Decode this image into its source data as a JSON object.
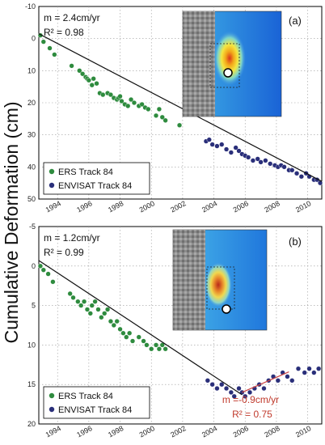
{
  "figure": {
    "ylabel": "Cumulative Deformation (cm)"
  },
  "colors": {
    "ers": "#2e8b3e",
    "envisat": "#2a2f7a",
    "fit": "#111111",
    "fit_envisat_b": "#cc4444",
    "annotation_red": "#c0392b"
  },
  "chart_data": [
    {
      "type": "scatter",
      "panel": "(a)",
      "x_ticks": [
        "1994",
        "1996",
        "1998",
        "2000",
        "2002",
        "2004",
        "2006",
        "2008",
        "2010"
      ],
      "xlim": [
        1992.8,
        2010.9
      ],
      "ylim": [
        -10,
        50
      ],
      "y_ticks": [
        "-10",
        "0",
        "10",
        "20",
        "30",
        "40",
        "50"
      ],
      "grid": true,
      "fit_text": "m =  2.4cm/yr",
      "r2_text": "R² = 0.98",
      "fit_line": {
        "x": [
          1992.8,
          2010.9
        ],
        "y": [
          -1.5,
          44.5
        ]
      },
      "legend": {
        "placement": "bottom-left",
        "entries": [
          "ERS Track 84",
          "ENVISAT Track 84"
        ]
      },
      "series": [
        {
          "name": "ERS Track 84",
          "color_key": "ers",
          "x": [
            1992.9,
            1993.1,
            1993.5,
            1993.8,
            1994.9,
            1995.4,
            1995.6,
            1995.8,
            1995.9,
            1996.0,
            1996.2,
            1996.3,
            1996.5,
            1996.7,
            1996.9,
            1997.2,
            1997.4,
            1997.6,
            1997.8,
            1997.9,
            1998.0,
            1998.1,
            1998.3,
            1998.5,
            1998.7,
            1998.9,
            1999.2,
            1999.4,
            1999.6,
            1999.8,
            2000.3,
            2000.5,
            2000.7,
            2000.9,
            2001.8
          ],
          "y": [
            -1.0,
            1.0,
            3.0,
            5.0,
            8.5,
            10.0,
            11.0,
            12.0,
            12.5,
            13.0,
            14.5,
            12.5,
            14.0,
            17.0,
            17.5,
            17.0,
            17.5,
            18.5,
            19.0,
            18.5,
            18.0,
            19.5,
            20.5,
            21.0,
            19.0,
            20.0,
            21.0,
            20.5,
            21.5,
            22.0,
            24.0,
            22.0,
            24.5,
            25.5,
            27.0
          ]
        },
        {
          "name": "ENVISAT Track 84",
          "color_key": "envisat",
          "x": [
            2003.5,
            2003.7,
            2003.9,
            2004.2,
            2004.5,
            2004.8,
            2005.1,
            2005.4,
            2005.6,
            2005.8,
            2006.0,
            2006.2,
            2006.5,
            2006.8,
            2007.0,
            2007.3,
            2007.6,
            2007.9,
            2008.1,
            2008.3,
            2008.5,
            2008.8,
            2009.0,
            2009.3,
            2009.6,
            2009.9,
            2010.1,
            2010.4,
            2010.6,
            2010.8
          ],
          "y": [
            32.0,
            31.5,
            33.0,
            33.5,
            33.0,
            34.5,
            35.5,
            34.0,
            35.0,
            36.0,
            36.5,
            37.0,
            38.0,
            37.5,
            38.5,
            38.0,
            39.0,
            39.5,
            40.0,
            39.5,
            40.0,
            41.0,
            41.0,
            42.0,
            43.0,
            42.0,
            43.0,
            44.0,
            44.0,
            45.0
          ]
        }
      ]
    },
    {
      "type": "scatter",
      "panel": "(b)",
      "x_ticks": [
        "1994",
        "1996",
        "1998",
        "2000",
        "2002",
        "2004",
        "2006",
        "2008",
        "2010"
      ],
      "xlim": [
        1992.8,
        2010.9
      ],
      "ylim": [
        -5,
        20
      ],
      "y_ticks": [
        "-5",
        "0",
        "5",
        "10",
        "15",
        "20"
      ],
      "grid": true,
      "fit_text": "m =  1.2cm/yr",
      "r2_text": "R² = 0.99",
      "fit_line": {
        "x": [
          1992.8,
          2005.8
        ],
        "y": [
          -0.7,
          16.3
        ]
      },
      "envisat_fit_line": {
        "x": [
          2005.8,
          2008.8
        ],
        "y": [
          16.0,
          13.4
        ]
      },
      "envisat_fit_text": "m =-0.9cm/yr",
      "envisat_r2_text": "R² = 0.75",
      "legend": {
        "placement": "bottom-left",
        "entries": [
          "ERS Track 84",
          "ENVISAT Track 84"
        ]
      },
      "series": [
        {
          "name": "ERS Track 84",
          "color_key": "ers",
          "x": [
            1992.9,
            1993.1,
            1993.4,
            1993.7,
            1994.8,
            1995.0,
            1995.3,
            1995.5,
            1995.7,
            1995.9,
            1996.1,
            1996.2,
            1996.4,
            1996.6,
            1996.8,
            1997.0,
            1997.2,
            1997.4,
            1997.6,
            1997.8,
            1998.0,
            1998.2,
            1998.4,
            1998.6,
            1998.8,
            1999.2,
            1999.5,
            1999.7,
            2000.0,
            2000.3,
            2000.5,
            2000.7,
            2000.9
          ],
          "y": [
            0.0,
            0.5,
            1.0,
            2.0,
            3.5,
            4.0,
            4.5,
            5.0,
            4.5,
            5.5,
            6.0,
            5.0,
            4.5,
            5.5,
            6.5,
            6.0,
            5.5,
            7.0,
            7.5,
            7.0,
            8.0,
            8.5,
            9.0,
            8.5,
            9.5,
            9.0,
            9.5,
            10.0,
            10.5,
            10.0,
            10.5,
            10.0,
            10.5
          ]
        },
        {
          "name": "ENVISAT Track 84",
          "color_key": "envisat",
          "x": [
            2003.6,
            2003.9,
            2004.2,
            2004.5,
            2004.8,
            2005.1,
            2005.3,
            2005.6,
            2005.8,
            2006.0,
            2006.3,
            2006.6,
            2006.9,
            2007.2,
            2007.5,
            2007.8,
            2008.1,
            2008.4,
            2008.7,
            2009.0,
            2009.4,
            2009.8,
            2010.1,
            2010.4,
            2010.7
          ],
          "y": [
            14.5,
            15.0,
            15.5,
            15.0,
            15.5,
            16.0,
            16.5,
            15.5,
            16.0,
            16.5,
            16.0,
            15.5,
            15.0,
            15.5,
            14.5,
            14.0,
            14.5,
            13.5,
            14.0,
            14.5,
            13.0,
            13.5,
            13.0,
            13.5,
            13.0
          ]
        }
      ]
    }
  ]
}
